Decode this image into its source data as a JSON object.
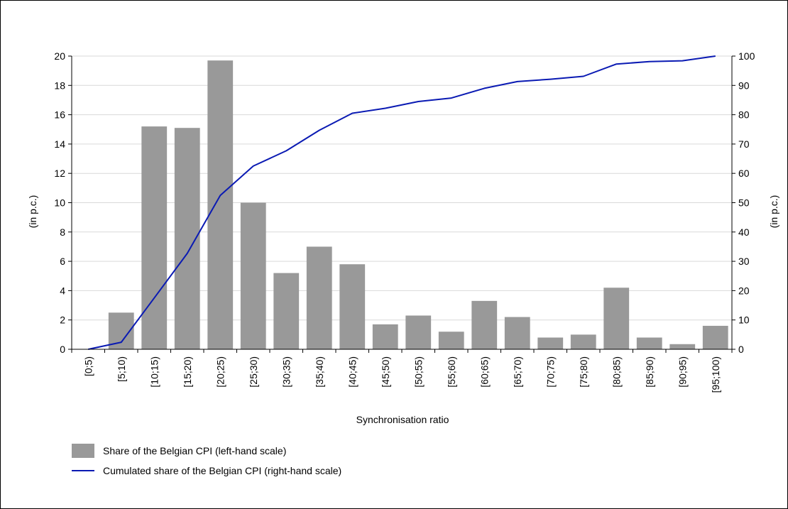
{
  "chart_data": {
    "type": "bar",
    "xlabel": "Synchronisation ratio",
    "ylabel_left": "(in p.c.)",
    "ylabel_right": "(in p.c.)",
    "ylim_left": [
      0,
      20
    ],
    "ylim_right": [
      0,
      100
    ],
    "yticks_left": [
      "0",
      "2",
      "4",
      "6",
      "8",
      "10",
      "12",
      "14",
      "16",
      "18",
      "20"
    ],
    "yticks_right": [
      "0",
      "10",
      "20",
      "30",
      "40",
      "50",
      "60",
      "70",
      "80",
      "90",
      "100"
    ],
    "grid": true,
    "legend_position": "bottom-left",
    "categories": [
      "[0;5)",
      "[5;10)",
      "[10;15)",
      "[15;20)",
      "[20;25)",
      "[25;30)",
      "[30;35)",
      "[35;40)",
      "[40;45)",
      "[45;50)",
      "[50;55)",
      "[55;60)",
      "[60;65)",
      "[65;70)",
      "[70;75)",
      "[75;80)",
      "[80;85)",
      "[85;90)",
      "[90;95)",
      "[95;100)"
    ],
    "series": [
      {
        "name": "Share of the Belgian CPI (left-hand scale)",
        "type": "bar",
        "axis": "left",
        "color": "#999999",
        "values": [
          0,
          2.5,
          15.2,
          15.1,
          19.7,
          10.0,
          5.2,
          7.0,
          5.8,
          1.7,
          2.3,
          1.2,
          3.3,
          2.2,
          0.8,
          1.0,
          4.2,
          0.8,
          0.35,
          1.6
        ]
      },
      {
        "name": "Cumulated share of the Belgian CPI (right-hand scale)",
        "type": "line",
        "axis": "right",
        "color": "#0a1ab3",
        "values": [
          0,
          2.4,
          17.5,
          32.7,
          52.5,
          62.5,
          67.7,
          74.7,
          80.5,
          82.2,
          84.5,
          85.7,
          89.0,
          91.3,
          92.1,
          93.1,
          97.3,
          98.1,
          98.4,
          100
        ]
      }
    ]
  }
}
